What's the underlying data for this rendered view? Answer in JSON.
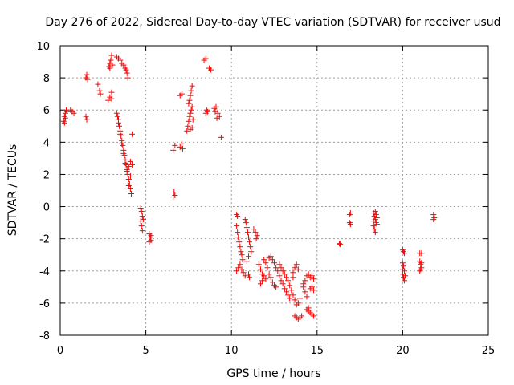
{
  "chart_data": {
    "type": "scatter",
    "title": "Day 276 of 2022, Sidereal Day-to-day VTEC variation (SDTVAR) for receiver usud",
    "xlabel": "GPS time / hours",
    "ylabel": "SDTVAR / TECUs",
    "xlim": [
      0,
      25
    ],
    "ylim": [
      -8,
      10
    ],
    "xticks": [
      0,
      5,
      10,
      15,
      20,
      25
    ],
    "yticks": [
      -8,
      -6,
      -4,
      -2,
      0,
      2,
      4,
      6,
      8,
      10
    ],
    "grid": true,
    "marker": "+",
    "color": "#ff0000",
    "series": [
      {
        "name": "SDTVAR",
        "points": [
          [
            0.2,
            5.3
          ],
          [
            0.25,
            5.6
          ],
          [
            0.3,
            5.8
          ],
          [
            0.35,
            6.0
          ],
          [
            0.4,
            5.9
          ],
          [
            0.3,
            5.5
          ],
          [
            0.25,
            5.2
          ],
          [
            0.6,
            6.0
          ],
          [
            0.7,
            5.9
          ],
          [
            0.8,
            5.8
          ],
          [
            1.5,
            8.0
          ],
          [
            1.55,
            8.2
          ],
          [
            1.6,
            7.9
          ],
          [
            1.5,
            5.6
          ],
          [
            1.55,
            5.4
          ],
          [
            2.2,
            7.6
          ],
          [
            2.3,
            7.2
          ],
          [
            2.35,
            7.0
          ],
          [
            2.8,
            6.6
          ],
          [
            2.9,
            6.8
          ],
          [
            3.0,
            7.1
          ],
          [
            3.0,
            6.7
          ],
          [
            2.85,
            8.7
          ],
          [
            2.9,
            8.9
          ],
          [
            2.95,
            9.1
          ],
          [
            3.0,
            9.4
          ],
          [
            2.9,
            8.6
          ],
          [
            3.05,
            8.8
          ],
          [
            3.3,
            9.3
          ],
          [
            3.4,
            9.2
          ],
          [
            3.5,
            9.1
          ],
          [
            3.6,
            8.9
          ],
          [
            3.7,
            8.8
          ],
          [
            3.8,
            8.6
          ],
          [
            3.85,
            8.5
          ],
          [
            3.9,
            8.3
          ],
          [
            3.95,
            8.0
          ],
          [
            3.3,
            5.8
          ],
          [
            3.35,
            5.6
          ],
          [
            3.4,
            5.4
          ],
          [
            3.45,
            5.0
          ],
          [
            3.5,
            4.7
          ],
          [
            3.55,
            4.4
          ],
          [
            3.6,
            4.1
          ],
          [
            3.65,
            3.8
          ],
          [
            3.7,
            3.5
          ],
          [
            3.75,
            3.2
          ],
          [
            3.8,
            2.9
          ],
          [
            3.85,
            2.6
          ],
          [
            3.9,
            2.3
          ],
          [
            3.95,
            2.0
          ],
          [
            4.0,
            1.7
          ],
          [
            4.05,
            1.4
          ],
          [
            4.1,
            1.1
          ],
          [
            4.15,
            0.8
          ],
          [
            3.4,
            5.2
          ],
          [
            3.5,
            4.5
          ],
          [
            3.6,
            3.9
          ],
          [
            3.7,
            3.3
          ],
          [
            3.8,
            2.7
          ],
          [
            3.9,
            2.2
          ],
          [
            4.0,
            2.5
          ],
          [
            4.1,
            2.8
          ],
          [
            4.2,
            2.6
          ],
          [
            4.1,
            1.9
          ],
          [
            4.0,
            1.3
          ],
          [
            4.2,
            4.5
          ],
          [
            4.7,
            -0.1
          ],
          [
            4.75,
            -0.3
          ],
          [
            4.8,
            -0.6
          ],
          [
            4.7,
            -0.9
          ],
          [
            4.75,
            -1.2
          ],
          [
            4.8,
            -1.5
          ],
          [
            4.85,
            -0.8
          ],
          [
            5.2,
            -1.7
          ],
          [
            5.25,
            -1.9
          ],
          [
            5.3,
            -2.1
          ],
          [
            5.2,
            -2.2
          ],
          [
            5.3,
            -1.8
          ],
          [
            6.6,
            3.5
          ],
          [
            6.7,
            3.8
          ],
          [
            6.6,
            0.6
          ],
          [
            6.65,
            0.9
          ],
          [
            6.7,
            0.7
          ],
          [
            7.0,
            3.7
          ],
          [
            7.1,
            3.9
          ],
          [
            7.15,
            3.6
          ],
          [
            7.0,
            6.9
          ],
          [
            7.1,
            7.0
          ],
          [
            7.4,
            4.7
          ],
          [
            7.45,
            5.0
          ],
          [
            7.5,
            5.3
          ],
          [
            7.55,
            5.6
          ],
          [
            7.6,
            5.8
          ],
          [
            7.65,
            6.0
          ],
          [
            7.7,
            6.2
          ],
          [
            7.5,
            6.4
          ],
          [
            7.55,
            6.6
          ],
          [
            7.6,
            6.9
          ],
          [
            7.65,
            7.2
          ],
          [
            7.7,
            7.5
          ],
          [
            7.75,
            5.4
          ],
          [
            7.7,
            4.9
          ],
          [
            7.6,
            4.8
          ],
          [
            8.4,
            9.1
          ],
          [
            8.5,
            9.2
          ],
          [
            8.7,
            8.6
          ],
          [
            8.8,
            8.5
          ],
          [
            8.5,
            5.8
          ],
          [
            8.55,
            6.0
          ],
          [
            8.6,
            5.9
          ],
          [
            9.0,
            6.1
          ],
          [
            9.05,
            5.9
          ],
          [
            9.1,
            6.2
          ],
          [
            9.2,
            5.8
          ],
          [
            9.15,
            5.5
          ],
          [
            9.3,
            5.6
          ],
          [
            9.4,
            4.3
          ],
          [
            10.3,
            -0.5
          ],
          [
            10.35,
            -0.6
          ],
          [
            10.3,
            -1.2
          ],
          [
            10.35,
            -1.6
          ],
          [
            10.4,
            -1.9
          ],
          [
            10.45,
            -2.2
          ],
          [
            10.5,
            -2.5
          ],
          [
            10.55,
            -2.8
          ],
          [
            10.6,
            -3.0
          ],
          [
            10.65,
            -3.3
          ],
          [
            10.3,
            -4.0
          ],
          [
            10.4,
            -3.8
          ],
          [
            10.5,
            -3.6
          ],
          [
            10.6,
            -3.9
          ],
          [
            10.7,
            -4.1
          ],
          [
            10.8,
            -4.3
          ],
          [
            10.8,
            -0.8
          ],
          [
            10.85,
            -1.0
          ],
          [
            10.9,
            -1.3
          ],
          [
            10.95,
            -1.6
          ],
          [
            11.0,
            -1.9
          ],
          [
            11.05,
            -2.2
          ],
          [
            11.1,
            -2.5
          ],
          [
            11.15,
            -2.8
          ],
          [
            11.0,
            -3.1
          ],
          [
            10.9,
            -3.4
          ],
          [
            11.0,
            -4.2
          ],
          [
            11.05,
            -4.4
          ],
          [
            11.3,
            -1.4
          ],
          [
            11.4,
            -1.6
          ],
          [
            11.45,
            -2.0
          ],
          [
            11.5,
            -1.8
          ],
          [
            11.6,
            -3.6
          ],
          [
            11.7,
            -3.9
          ],
          [
            11.8,
            -4.2
          ],
          [
            11.9,
            -4.3
          ],
          [
            12.0,
            -4.5
          ],
          [
            11.7,
            -4.8
          ],
          [
            11.8,
            -4.6
          ],
          [
            11.9,
            -3.3
          ],
          [
            12.0,
            -3.5
          ],
          [
            12.1,
            -3.8
          ],
          [
            12.2,
            -3.2
          ],
          [
            12.3,
            -3.1
          ],
          [
            12.4,
            -3.3
          ],
          [
            12.5,
            -3.5
          ],
          [
            12.6,
            -3.8
          ],
          [
            12.7,
            -4.0
          ],
          [
            12.8,
            -4.3
          ],
          [
            12.9,
            -4.6
          ],
          [
            13.0,
            -4.8
          ],
          [
            13.1,
            -5.1
          ],
          [
            13.2,
            -5.3
          ],
          [
            13.3,
            -5.5
          ],
          [
            13.4,
            -5.7
          ],
          [
            12.3,
            -4.4
          ],
          [
            12.4,
            -4.7
          ],
          [
            12.5,
            -4.9
          ],
          [
            12.6,
            -5.0
          ],
          [
            12.2,
            -4.2
          ],
          [
            12.8,
            -3.6
          ],
          [
            12.9,
            -3.8
          ],
          [
            13.0,
            -4.0
          ],
          [
            13.1,
            -4.2
          ],
          [
            13.2,
            -4.4
          ],
          [
            13.3,
            -4.6
          ],
          [
            13.4,
            -4.9
          ],
          [
            13.5,
            -5.2
          ],
          [
            13.6,
            -5.5
          ],
          [
            13.7,
            -5.8
          ],
          [
            13.8,
            -6.1
          ],
          [
            13.9,
            -6.0
          ],
          [
            14.0,
            -5.7
          ],
          [
            13.6,
            -4.1
          ],
          [
            13.7,
            -3.8
          ],
          [
            13.8,
            -3.6
          ],
          [
            13.9,
            -3.9
          ],
          [
            13.6,
            -4.4
          ],
          [
            13.7,
            -6.8
          ],
          [
            13.8,
            -6.9
          ],
          [
            13.9,
            -7.0
          ],
          [
            14.0,
            -6.9
          ],
          [
            14.1,
            -6.8
          ],
          [
            14.2,
            -5.0
          ],
          [
            14.3,
            -5.3
          ],
          [
            14.4,
            -5.6
          ],
          [
            14.3,
            -4.6
          ],
          [
            14.2,
            -4.8
          ],
          [
            14.4,
            -6.4
          ],
          [
            14.5,
            -6.5
          ],
          [
            14.6,
            -6.6
          ],
          [
            14.7,
            -6.7
          ],
          [
            14.8,
            -6.8
          ],
          [
            14.5,
            -6.3
          ],
          [
            14.4,
            -4.3
          ],
          [
            14.5,
            -4.2
          ],
          [
            14.6,
            -4.4
          ],
          [
            14.7,
            -4.3
          ],
          [
            14.8,
            -4.5
          ],
          [
            14.6,
            -5.1
          ],
          [
            14.7,
            -5.0
          ],
          [
            14.8,
            -5.2
          ],
          [
            16.3,
            -2.3
          ],
          [
            16.35,
            -2.35
          ],
          [
            16.9,
            -0.5
          ],
          [
            16.95,
            -0.4
          ],
          [
            16.9,
            -1.0
          ],
          [
            16.95,
            -1.1
          ],
          [
            18.3,
            -0.4
          ],
          [
            18.35,
            -0.6
          ],
          [
            18.4,
            -0.8
          ],
          [
            18.45,
            -1.0
          ],
          [
            18.3,
            -1.2
          ],
          [
            18.35,
            -1.4
          ],
          [
            18.4,
            -1.6
          ],
          [
            18.45,
            -0.5
          ],
          [
            18.5,
            -0.7
          ],
          [
            18.3,
            -0.9
          ],
          [
            18.4,
            -0.3
          ],
          [
            18.5,
            -1.1
          ],
          [
            20.0,
            -2.7
          ],
          [
            20.05,
            -2.8
          ],
          [
            20.1,
            -2.9
          ],
          [
            20.0,
            -3.5
          ],
          [
            20.05,
            -3.7
          ],
          [
            20.1,
            -4.0
          ],
          [
            20.0,
            -4.2
          ],
          [
            20.05,
            -4.4
          ],
          [
            20.1,
            -4.6
          ],
          [
            20.15,
            -4.3
          ],
          [
            20.0,
            -3.9
          ],
          [
            21.0,
            -3.4
          ],
          [
            21.05,
            -3.6
          ],
          [
            21.1,
            -3.8
          ],
          [
            21.0,
            -4.0
          ],
          [
            21.05,
            -3.9
          ],
          [
            21.1,
            -3.5
          ],
          [
            21.0,
            -2.9
          ],
          [
            21.1,
            -2.9
          ],
          [
            21.8,
            -0.5
          ],
          [
            21.85,
            -0.7
          ],
          [
            21.8,
            -0.8
          ]
        ]
      }
    ]
  }
}
